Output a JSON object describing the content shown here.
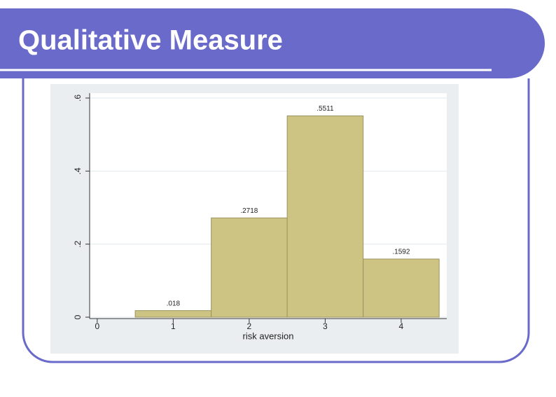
{
  "slide_title": "Qualitative Measure",
  "chart_data": {
    "type": "histogram",
    "xlabel": "risk aversion",
    "bins": [
      0.5,
      1.5,
      2.5,
      3.5,
      4.5
    ],
    "values": [
      0.018,
      0.2718,
      0.5511,
      0.1592
    ],
    "value_labels": [
      ".018",
      ".2718",
      ".5511",
      ".1592"
    ],
    "color": "#cdc383",
    "xlim": [
      -0.1,
      4.6
    ],
    "xticks": [
      0,
      1,
      2,
      3,
      4
    ],
    "ylim": [
      0,
      0.6
    ],
    "yticks": [
      0,
      {
        "value": 0.2,
        "label": ".2"
      },
      {
        "value": 0.4,
        "label": ".4"
      },
      {
        "value": 0.6,
        "label": ".6"
      }
    ],
    "grid": true
  }
}
